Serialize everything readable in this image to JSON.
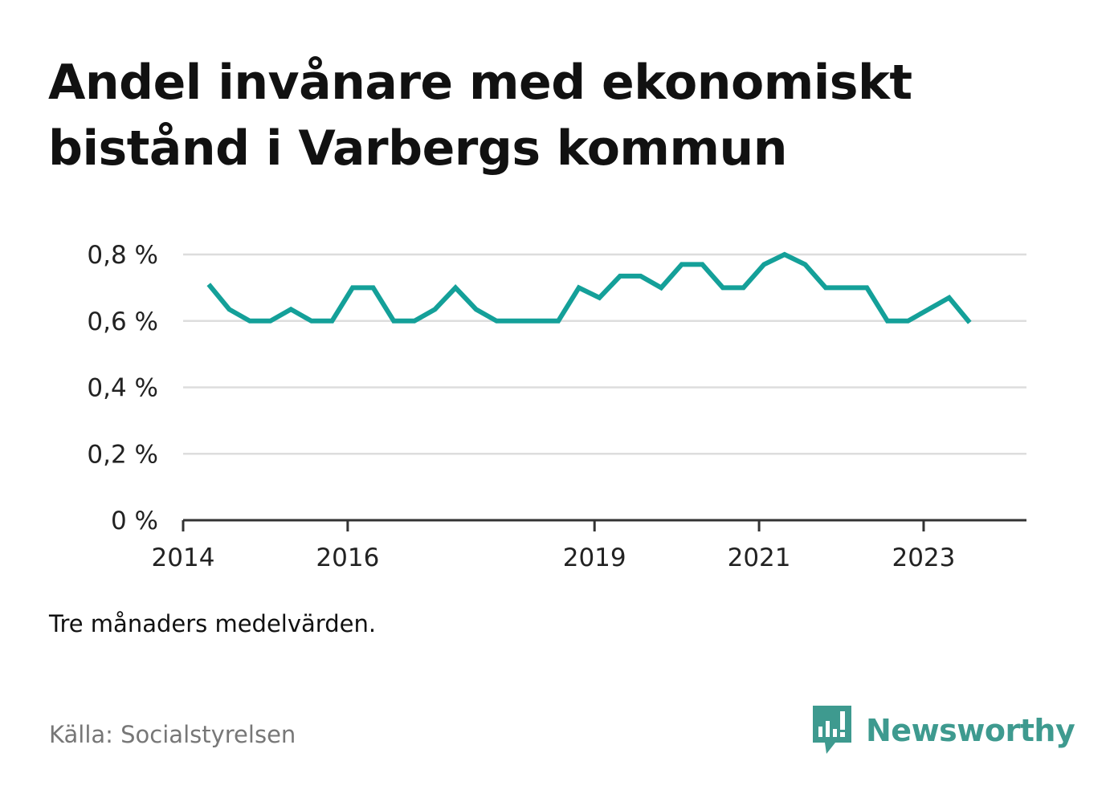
{
  "title": "Andel invånare med ekonomiskt bistånd i Varbergs kommun",
  "note": "Tre månaders medelvärden.",
  "source": "Källa: Socialstyrelsen",
  "brand": {
    "name": "Newsworthy",
    "color": "#3e9a8f"
  },
  "colors": {
    "line": "#14a099",
    "grid": "#dddddd",
    "axis": "#333333"
  },
  "chart_data": {
    "type": "line",
    "title": "Andel invånare med ekonomiskt bistånd i Varbergs kommun",
    "xlabel": "",
    "ylabel": "",
    "xlim": [
      2014.0,
      2024.25
    ],
    "ylim": [
      0,
      0.8
    ],
    "xticks": [
      2014,
      2016,
      2019,
      2021,
      2023
    ],
    "yticks": [
      {
        "value": 0,
        "label": "0 %"
      },
      {
        "value": 0.2,
        "label": "0,2 %"
      },
      {
        "value": 0.4,
        "label": "0,4 %"
      },
      {
        "value": 0.6,
        "label": "0,6 %"
      },
      {
        "value": 0.8,
        "label": "0,8 %"
      }
    ],
    "grid": true,
    "legend": "none",
    "series": [
      {
        "color": "#14a099",
        "x": [
          2014.31,
          2014.56,
          2014.81,
          2015.06,
          2015.31,
          2015.56,
          2015.81,
          2016.06,
          2016.31,
          2016.56,
          2016.81,
          2017.06,
          2017.31,
          2017.56,
          2017.81,
          2018.06,
          2018.31,
          2018.56,
          2018.81,
          2019.06,
          2019.31,
          2019.56,
          2019.81,
          2020.06,
          2020.31,
          2020.56,
          2020.81,
          2021.06,
          2021.31,
          2021.56,
          2021.81,
          2022.06,
          2022.31,
          2022.56,
          2022.81,
          2023.06,
          2023.31,
          2023.56
        ],
        "values": [
          0.71,
          0.635,
          0.6,
          0.6,
          0.635,
          0.6,
          0.6,
          0.7,
          0.7,
          0.6,
          0.6,
          0.635,
          0.7,
          0.635,
          0.6,
          0.6,
          0.6,
          0.6,
          0.7,
          0.67,
          0.735,
          0.735,
          0.7,
          0.77,
          0.77,
          0.7,
          0.7,
          0.77,
          0.8,
          0.77,
          0.7,
          0.7,
          0.7,
          0.6,
          0.6,
          0.635,
          0.67,
          0.595
        ]
      }
    ]
  }
}
